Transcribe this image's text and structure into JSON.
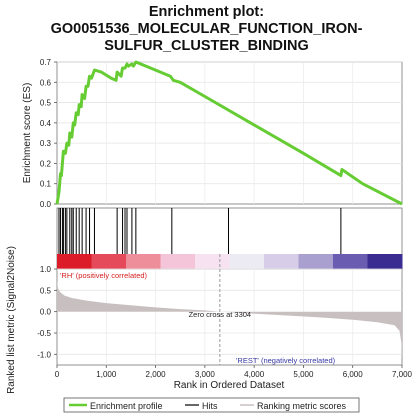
{
  "title_lines": [
    "Enrichment plot:",
    "GO0051536_MOLECULAR_FUNCTION_IRON-",
    "SULFUR_CLUSTER_BINDING"
  ],
  "colors": {
    "es_line": "#66cc33",
    "hits": "#000000",
    "metric_fill": "#c8c0c0",
    "pos_label": "#d62020",
    "neg_label": "#3a3aa8",
    "zero_cross_line": "#999999",
    "gradient": [
      "#dd1c2a",
      "#e44a5a",
      "#ee8e9a",
      "#f4c4d8",
      "#f6e2f0",
      "#ecebf4",
      "#d8cde8",
      "#aaa0d0",
      "#6a5cb0",
      "#3a2c90"
    ]
  },
  "chart_data": [
    {
      "type": "line",
      "name": "es_panel",
      "ylabel": "Enrichment score (ES)",
      "xlim": [
        0,
        7000
      ],
      "ylim": [
        0.0,
        0.7
      ],
      "yticks": [
        0.0,
        0.1,
        0.2,
        0.3,
        0.4,
        0.5,
        0.6,
        0.7
      ],
      "ytick_labels": [
        "0.0",
        "0.1",
        "0.2",
        "0.3",
        "0.4",
        "0.5",
        "0.6",
        "0.7"
      ],
      "grid": true,
      "series": [
        {
          "points": [
            [
              0,
              0.0
            ],
            [
              40,
              0.06
            ],
            [
              70,
              0.15
            ],
            [
              90,
              0.14
            ],
            [
              110,
              0.2
            ],
            [
              130,
              0.26
            ],
            [
              170,
              0.25
            ],
            [
              200,
              0.3
            ],
            [
              240,
              0.29
            ],
            [
              260,
              0.35
            ],
            [
              300,
              0.33
            ],
            [
              330,
              0.4
            ],
            [
              360,
              0.39
            ],
            [
              390,
              0.45
            ],
            [
              430,
              0.44
            ],
            [
              450,
              0.49
            ],
            [
              490,
              0.48
            ],
            [
              510,
              0.54
            ],
            [
              560,
              0.52
            ],
            [
              590,
              0.58
            ],
            [
              630,
              0.58
            ],
            [
              660,
              0.63
            ],
            [
              700,
              0.62
            ],
            [
              760,
              0.66
            ],
            [
              900,
              0.65
            ],
            [
              1100,
              0.62
            ],
            [
              1200,
              0.61
            ],
            [
              1220,
              0.65
            ],
            [
              1300,
              0.63
            ],
            [
              1330,
              0.67
            ],
            [
              1380,
              0.67
            ],
            [
              1420,
              0.69
            ],
            [
              1450,
              0.68
            ],
            [
              1520,
              0.69
            ],
            [
              1550,
              0.68
            ],
            [
              1600,
              0.7
            ],
            [
              1700,
              0.69
            ],
            [
              2000,
              0.66
            ],
            [
              2300,
              0.63
            ],
            [
              2330,
              0.62
            ],
            [
              2360,
              0.61
            ],
            [
              2500,
              0.6
            ],
            [
              3000,
              0.53
            ],
            [
              4000,
              0.39
            ],
            [
              5000,
              0.25
            ],
            [
              5760,
              0.14
            ],
            [
              5780,
              0.17
            ],
            [
              6200,
              0.1
            ],
            [
              7000,
              0.0
            ]
          ]
        }
      ]
    },
    {
      "type": "scatter",
      "name": "hits_panel",
      "xlim": [
        0,
        7000
      ],
      "hits": [
        40,
        70,
        110,
        130,
        170,
        200,
        260,
        300,
        330,
        390,
        450,
        510,
        590,
        660,
        760,
        1220,
        1330,
        1380,
        1420,
        1520,
        1600,
        2330,
        3480,
        5760
      ],
      "pos_label": "'RH' (positively correlated)",
      "neg_label": "'REST' (negatively correlated)"
    },
    {
      "type": "area",
      "name": "ranked_metric_panel",
      "ylabel": "Ranked list metric (Signal2Noise)",
      "xlabel": "Rank in Ordered Dataset",
      "xlim": [
        0,
        7000
      ],
      "ylim": [
        -1.25,
        1.0
      ],
      "xticks": [
        0,
        1000,
        2000,
        3000,
        4000,
        5000,
        6000,
        7000
      ],
      "xtick_labels": [
        "0",
        "1,000",
        "2,000",
        "3,000",
        "4,000",
        "5,000",
        "6,000",
        "7,000"
      ],
      "yticks": [
        1.0,
        0.5,
        0.0,
        -0.5,
        -1.0
      ],
      "ytick_labels": [
        "1.0",
        "0.5",
        "0.0",
        "-0.5",
        "-1.0"
      ],
      "zero_cross": 3304,
      "zero_cross_label": "Zero cross at 3304",
      "points": [
        [
          0,
          0.72
        ],
        [
          20,
          0.55
        ],
        [
          60,
          0.46
        ],
        [
          150,
          0.38
        ],
        [
          300,
          0.32
        ],
        [
          600,
          0.26
        ],
        [
          1000,
          0.2
        ],
        [
          1500,
          0.15
        ],
        [
          2000,
          0.1
        ],
        [
          2500,
          0.06
        ],
        [
          3000,
          0.03
        ],
        [
          3304,
          0.0
        ],
        [
          3700,
          -0.03
        ],
        [
          4200,
          -0.06
        ],
        [
          4800,
          -0.1
        ],
        [
          5400,
          -0.14
        ],
        [
          6000,
          -0.19
        ],
        [
          6500,
          -0.25
        ],
        [
          6850,
          -0.32
        ],
        [
          6950,
          -0.45
        ],
        [
          6990,
          -0.75
        ],
        [
          7000,
          -1.15
        ]
      ]
    }
  ],
  "legend": {
    "items": [
      "Enrichment profile",
      "Hits",
      "Ranking metric scores"
    ]
  }
}
